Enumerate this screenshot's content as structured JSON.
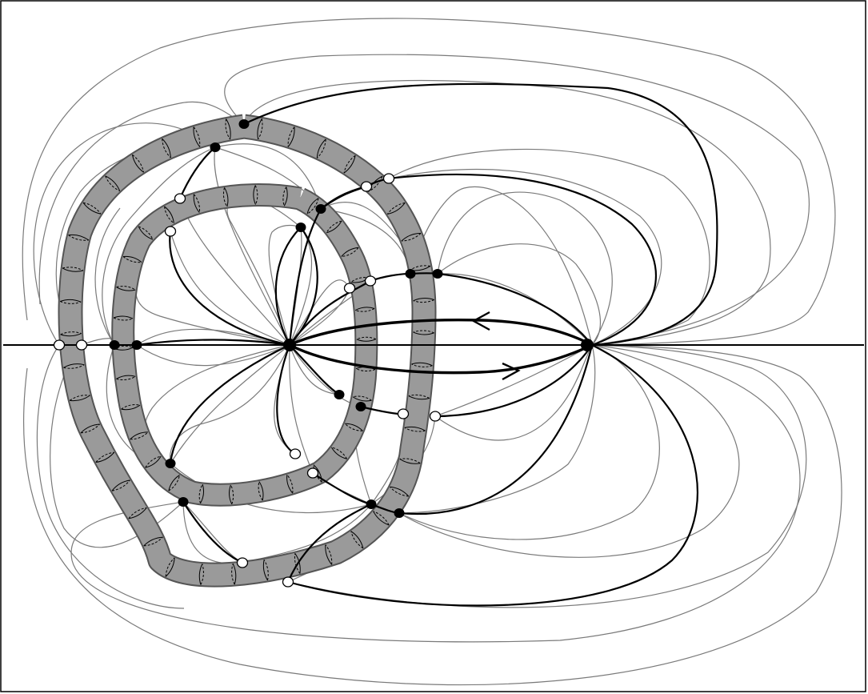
{
  "figure": {
    "description_free": true,
    "colors": {
      "background": "#ffffff",
      "frame": "#000000",
      "thin_curves": "#7a7a7a",
      "thick_curves": "#000000",
      "band_fill": "#9a9a9a",
      "band_edge": "#555555",
      "vertex_filled": "#000000",
      "vertex_open": "#ffffff"
    },
    "flow_arrows": [
      "left",
      "right"
    ]
  }
}
